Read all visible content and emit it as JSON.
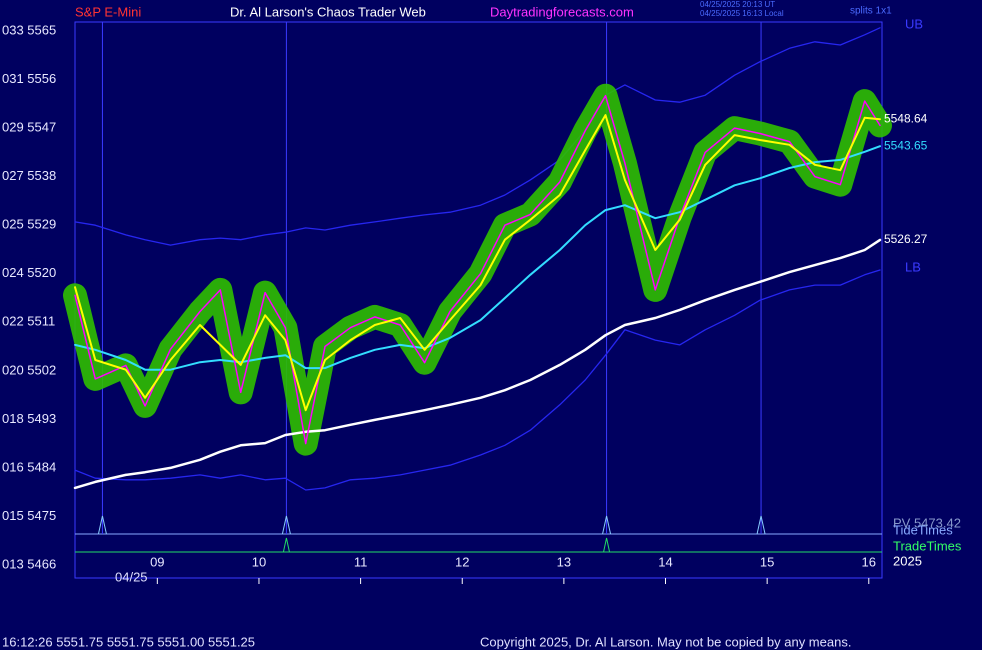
{
  "header": {
    "instrument": "S&P E-Mini",
    "site": "Dr. Al Larson's Chaos Trader Web",
    "url": "Daytradingforecasts.com",
    "time_ut": "04/25/2025 20:13 UT",
    "time_local": "04/25/2025 16:13 Local",
    "splits": "splits 1x1"
  },
  "chart_data": {
    "type": "line",
    "x": [
      8.19,
      8.39,
      8.69,
      8.88,
      9.13,
      9.42,
      9.62,
      9.82,
      10.06,
      10.26,
      10.46,
      10.65,
      10.9,
      11.14,
      11.39,
      11.63,
      11.88,
      12.18,
      12.42,
      12.67,
      12.96,
      13.21,
      13.41,
      13.6,
      13.9,
      14.14,
      14.39,
      14.68,
      14.93,
      15.22,
      15.47,
      15.72,
      15.96,
      16.11
    ],
    "series": [
      {
        "color": "#ff00ff",
        "values": [
          5516.0,
          5500.5,
          5503.0,
          5495.5,
          5506.0,
          5513.0,
          5517.0,
          5498.0,
          5516.5,
          5510.0,
          5488.5,
          5506.5,
          5510.0,
          5512.0,
          5510.5,
          5503.5,
          5513.0,
          5520.0,
          5529.0,
          5531.0,
          5537.0,
          5546.5,
          5553.0,
          5540.5,
          5517.0,
          5530.5,
          5542.5,
          5547.0,
          5546.0,
          5544.5,
          5538.0,
          5536.5,
          5552.0,
          5547.5
        ]
      },
      {
        "color": "#ffff00",
        "end_label": true,
        "values": [
          5517.5,
          5504.0,
          5502.2,
          5497.0,
          5504.0,
          5510.5,
          5506.8,
          5503.1,
          5512.3,
          5507.7,
          5494.7,
          5504.0,
          5507.7,
          5510.5,
          5511.8,
          5505.9,
          5511.4,
          5517.9,
          5526.3,
          5530.0,
          5534.6,
          5542.9,
          5549.4,
          5537.4,
          5524.4,
          5530.0,
          5540.2,
          5545.7,
          5544.8,
          5543.9,
          5540.2,
          5539.2,
          5548.9,
          5548.64
        ]
      },
      {
        "color": "#33ddff",
        "end_label": true,
        "values": [
          5506.8,
          5505.9,
          5504.0,
          5502.2,
          5502.2,
          5503.6,
          5504.0,
          5503.6,
          5504.4,
          5504.9,
          5502.5,
          5502.5,
          5504.4,
          5505.9,
          5506.8,
          5506.2,
          5508.1,
          5511.4,
          5515.5,
          5519.8,
          5524.4,
          5529.0,
          5531.8,
          5532.7,
          5530.3,
          5531.4,
          5533.7,
          5536.4,
          5537.7,
          5539.6,
          5540.7,
          5541.1,
          5542.6,
          5543.65
        ]
      },
      {
        "color": "#ffffff",
        "end_label": true,
        "values": [
          5480.3,
          5481.4,
          5482.7,
          5483.2,
          5484.0,
          5485.5,
          5487.0,
          5488.2,
          5488.6,
          5490.1,
          5490.7,
          5491.0,
          5492.0,
          5492.9,
          5493.8,
          5494.7,
          5495.7,
          5497.0,
          5498.4,
          5500.3,
          5503.1,
          5505.9,
          5508.6,
          5510.5,
          5511.8,
          5513.3,
          5515.1,
          5517.0,
          5518.5,
          5520.3,
          5521.6,
          5522.9,
          5524.4,
          5526.27
        ]
      },
      {
        "name": "UB",
        "color": "#2626f0",
        "values": [
          5529.6,
          5529.0,
          5527.2,
          5526.3,
          5525.3,
          5526.3,
          5526.6,
          5526.3,
          5527.2,
          5527.7,
          5528.5,
          5528.1,
          5529.0,
          5529.6,
          5530.3,
          5530.9,
          5531.4,
          5532.7,
          5534.6,
          5537.4,
          5541.1,
          5546.6,
          5553.1,
          5555.0,
          5552.2,
          5551.8,
          5553.1,
          5556.8,
          5559.3,
          5561.8,
          5563.0,
          5562.4,
          5564.3,
          5565.6
        ]
      },
      {
        "name": "LB",
        "color": "#2626f0",
        "values": [
          5483.6,
          5482.1,
          5481.8,
          5481.8,
          5482.1,
          5482.7,
          5482.1,
          5482.7,
          5481.8,
          5482.1,
          5479.9,
          5480.3,
          5481.8,
          5482.1,
          5482.7,
          5483.6,
          5484.5,
          5486.4,
          5488.2,
          5491.0,
          5495.7,
          5500.3,
          5504.9,
          5509.6,
          5507.7,
          5506.8,
          5509.6,
          5512.3,
          5515.1,
          5517.0,
          5517.9,
          5517.9,
          5519.8,
          5520.7
        ]
      }
    ],
    "glow_color": "#2fbf00",
    "xlim": [
      8.19,
      16.13
    ],
    "xticks": [
      {
        "value": 9,
        "label": "09"
      },
      10,
      11,
      12,
      13,
      14,
      15,
      16
    ],
    "ylim": [
      5466,
      5565
    ],
    "yticks": [
      {
        "value": 5565,
        "label": "033 5565"
      },
      {
        "value": 5556,
        "label": "031 5556"
      },
      {
        "value": 5547,
        "label": "029 5547"
      },
      {
        "value": 5538,
        "label": "027 5538"
      },
      {
        "value": 5529,
        "label": "025 5529"
      },
      {
        "value": 5520,
        "label": "024 5520"
      },
      {
        "value": 5511,
        "label": "022 5511"
      },
      {
        "value": 5502,
        "label": "020 5502"
      },
      {
        "value": 5493,
        "label": "018 5493"
      },
      {
        "value": 5484,
        "label": "016 5484"
      },
      {
        "value": 5475,
        "label": "015 5475"
      },
      {
        "value": 5466,
        "label": "013 5466"
      }
    ],
    "date_label": "04/25",
    "year_label": "2025",
    "pv_label": "PV 5473.42",
    "tide_label": "TideTimes",
    "tide_times": [
      8.46,
      10.27,
      13.42,
      14.94
    ],
    "trade_label": "TradeTimes",
    "trade_times": [
      10.27,
      13.42
    ]
  },
  "footer": {
    "quote": "16:12:26  5551.75 5551.75 5551.00 5551.25",
    "copyright": "Copyright 2025, Dr. Al Larson. May not be copied by any means."
  }
}
